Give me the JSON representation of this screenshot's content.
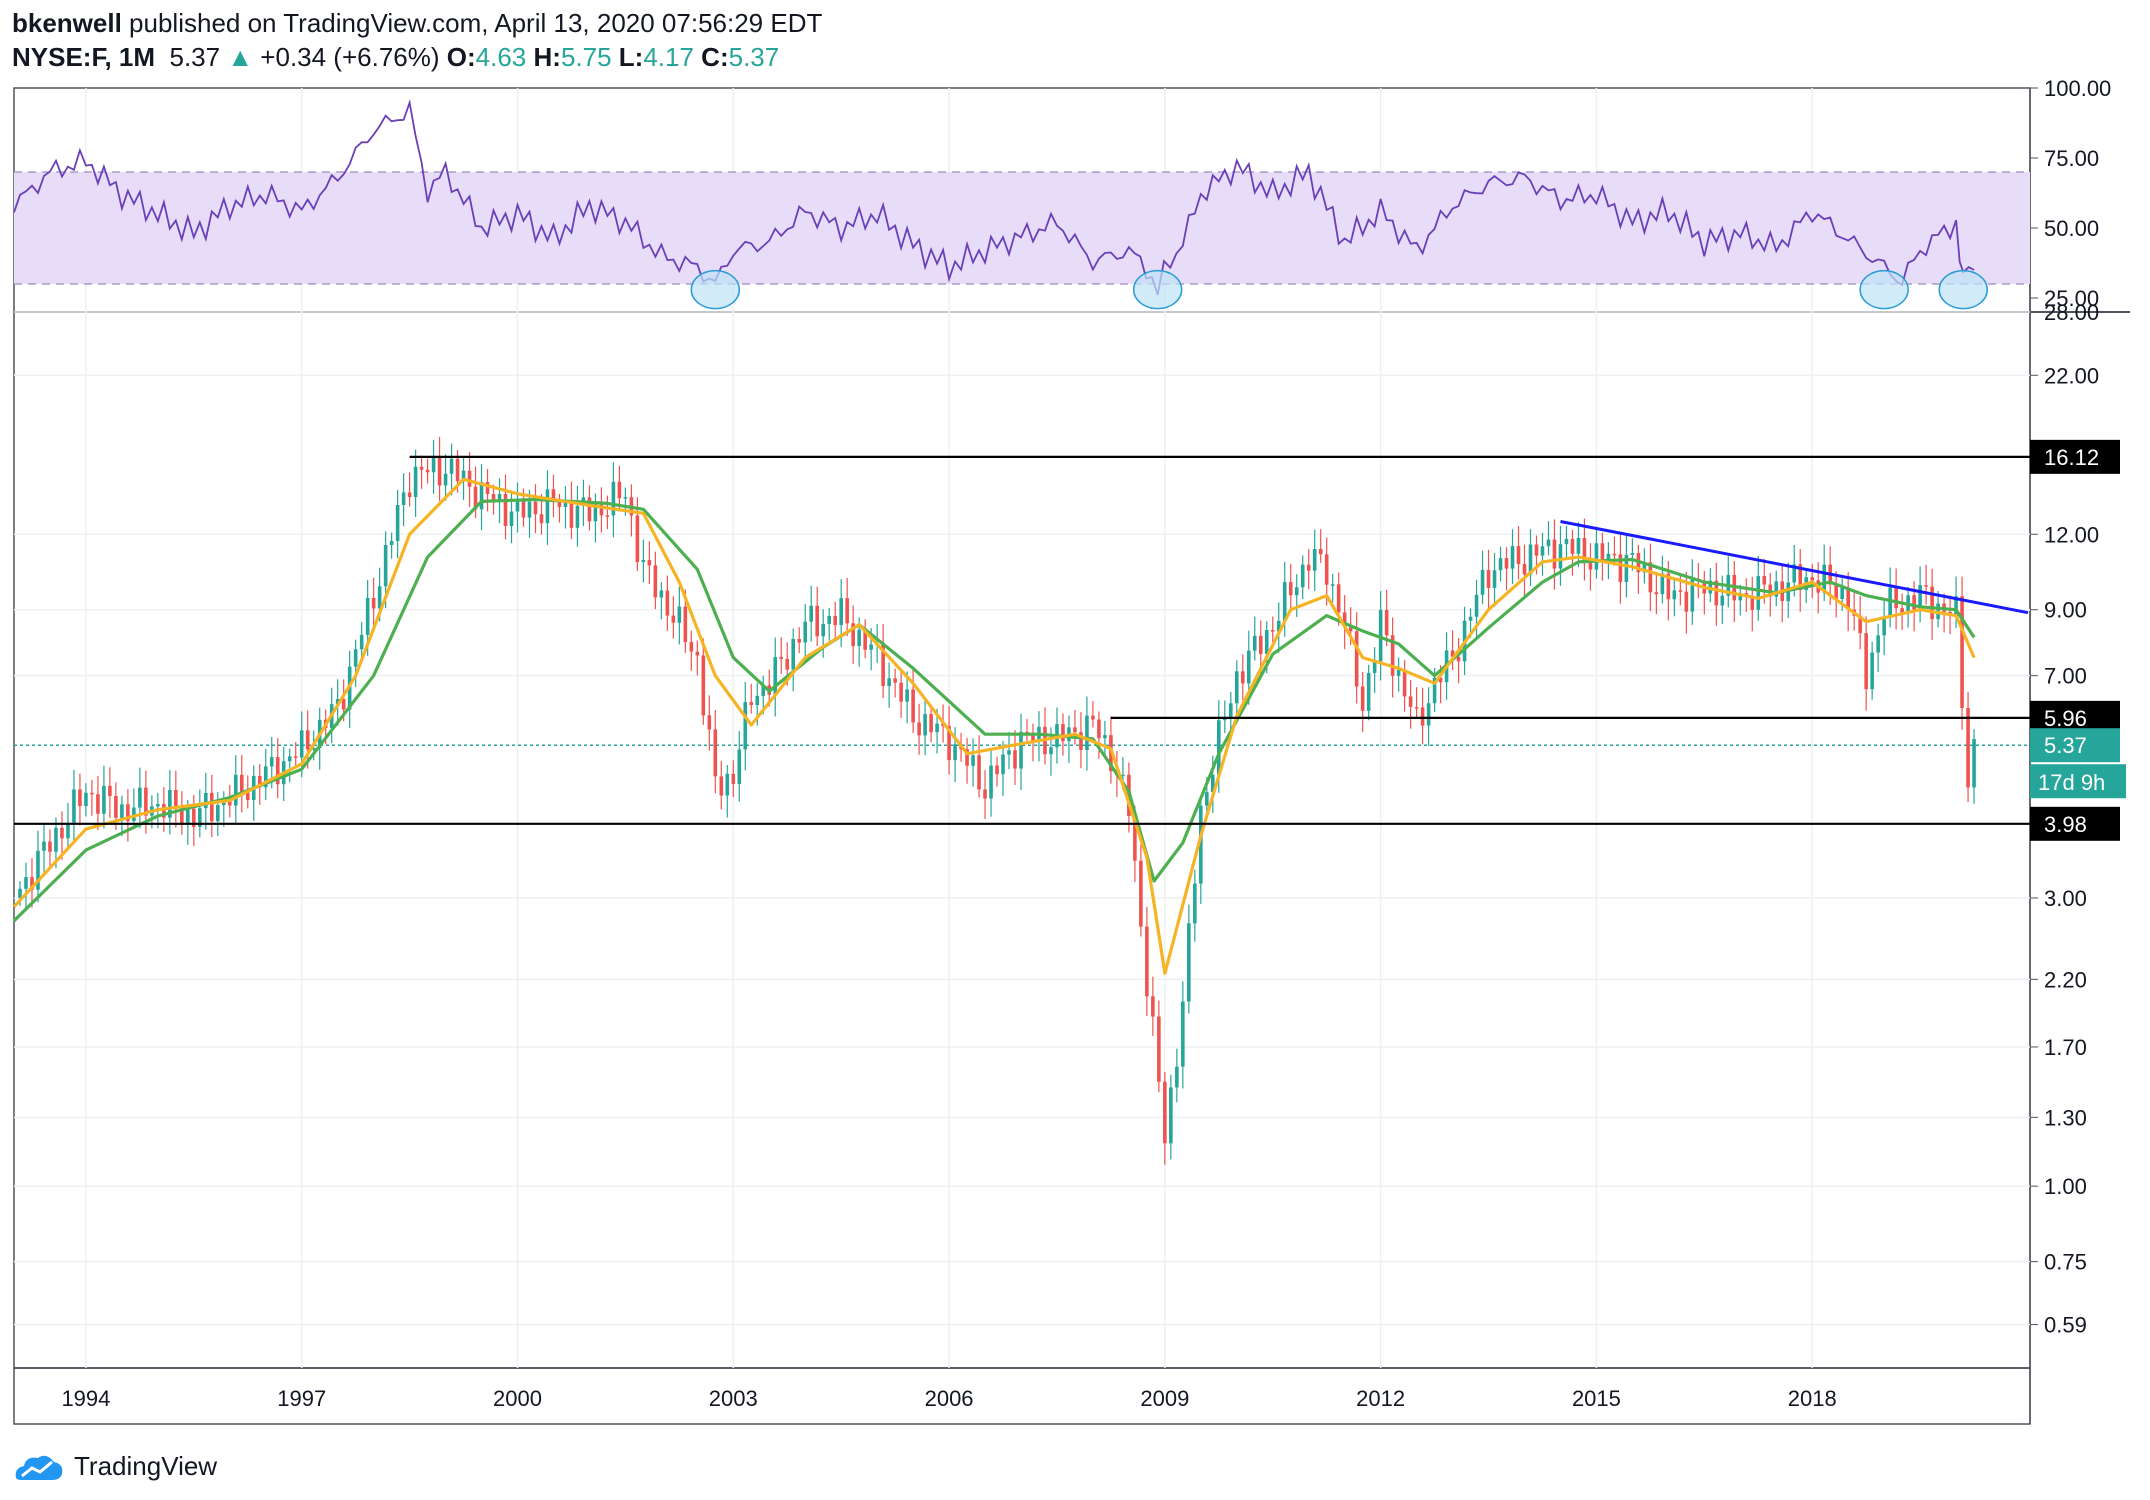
{
  "header": {
    "author": "bkenwell",
    "published": " published on TradingView.com, April 13, 2020 07:56:29 EDT",
    "symbol": "NYSE:F, 1M",
    "last": "5.37",
    "change": "+0.34 (+6.76%)",
    "o_label": "O:",
    "o": "4.63",
    "h_label": "H:",
    "h": "5.75",
    "l_label": "L:",
    "l": "4.17",
    "c_label": "C:",
    "c": "5.37"
  },
  "footer": {
    "brand": "TradingView"
  },
  "chart_data": [
    {
      "type": "line",
      "panel": "RSI",
      "ylim": [
        20,
        100
      ],
      "y_ticks": [
        "100.00",
        "75.00",
        "50.00",
        "25.00"
      ],
      "band": [
        30,
        70
      ],
      "grid": true,
      "band_color": "#e7ddf9",
      "line_color": "#6a3fb8",
      "highlight_circles_x": [
        2002.75,
        2008.9,
        2019.0,
        2020.1
      ],
      "x": [
        1993.0,
        1993.5,
        1994.0,
        1994.5,
        1995.0,
        1995.5,
        1996.0,
        1996.5,
        1997.0,
        1997.5,
        1998.0,
        1998.5,
        1998.75,
        1999.0,
        1999.5,
        2000.0,
        2000.5,
        2001.0,
        2001.5,
        2002.0,
        2002.5,
        2002.75,
        2003.0,
        2003.5,
        2004.0,
        2004.5,
        2005.0,
        2005.5,
        2006.0,
        2006.5,
        2007.0,
        2007.5,
        2008.0,
        2008.5,
        2008.9,
        2009.25,
        2009.5,
        2010.0,
        2010.5,
        2011.0,
        2011.5,
        2012.0,
        2012.5,
        2013.0,
        2013.5,
        2014.0,
        2014.5,
        2015.0,
        2015.5,
        2016.0,
        2016.5,
        2017.0,
        2017.5,
        2018.0,
        2018.5,
        2019.0,
        2019.25,
        2019.5,
        2020.0,
        2020.1,
        2020.25
      ],
      "y": [
        58,
        70,
        74,
        62,
        55,
        48,
        58,
        62,
        56,
        68,
        85,
        92,
        63,
        70,
        50,
        55,
        46,
        58,
        52,
        40,
        36,
        30,
        42,
        45,
        56,
        50,
        55,
        44,
        36,
        42,
        47,
        52,
        38,
        42,
        30,
        45,
        62,
        72,
        62,
        70,
        45,
        56,
        42,
        58,
        66,
        68,
        60,
        62,
        52,
        56,
        45,
        48,
        43,
        56,
        46,
        36,
        31,
        42,
        52,
        33,
        35
      ]
    },
    {
      "type": "candlestick",
      "panel": "Price",
      "series_name": "NYSE:F, 1M",
      "y_scale": "log",
      "ylim": [
        0.5,
        28.0
      ],
      "y_ticks": [
        "28.00",
        "22.00",
        "16.12",
        "12.00",
        "9.00",
        "7.00",
        "5.96",
        "5.37",
        "3.98",
        "3.00",
        "2.20",
        "1.70",
        "1.30",
        "1.00",
        "0.75",
        "0.59"
      ],
      "x_ticks": [
        "1994",
        "1997",
        "2000",
        "2003",
        "2006",
        "2009",
        "2012",
        "2015",
        "2018"
      ],
      "x_range": [
        1993.0,
        2021.0
      ],
      "grid": true,
      "price_path": [
        [
          1993.0,
          3.0
        ],
        [
          1993.5,
          3.7
        ],
        [
          1994.0,
          4.5
        ],
        [
          1994.5,
          4.2
        ],
        [
          1995.0,
          4.3
        ],
        [
          1995.5,
          4.1
        ],
        [
          1996.0,
          4.4
        ],
        [
          1996.5,
          4.8
        ],
        [
          1997.0,
          5.3
        ],
        [
          1997.5,
          6.2
        ],
        [
          1998.0,
          9.5
        ],
        [
          1998.5,
          15.0
        ],
        [
          1999.0,
          15.5
        ],
        [
          1999.5,
          14.0
        ],
        [
          2000.0,
          13.0
        ],
        [
          2000.5,
          13.5
        ],
        [
          2001.0,
          13.0
        ],
        [
          2001.5,
          14.0
        ],
        [
          2001.75,
          10.5
        ],
        [
          2002.0,
          9.5
        ],
        [
          2002.5,
          7.5
        ],
        [
          2002.75,
          4.6
        ],
        [
          2003.0,
          4.8
        ],
        [
          2003.25,
          6.5
        ],
        [
          2003.5,
          6.8
        ],
        [
          2004.0,
          8.5
        ],
        [
          2004.5,
          8.8
        ],
        [
          2005.0,
          7.5
        ],
        [
          2005.5,
          6.0
        ],
        [
          2006.0,
          5.5
        ],
        [
          2006.5,
          4.6
        ],
        [
          2007.0,
          5.5
        ],
        [
          2007.5,
          5.5
        ],
        [
          2008.0,
          5.8
        ],
        [
          2008.25,
          5.2
        ],
        [
          2008.5,
          4.2
        ],
        [
          2008.75,
          2.2
        ],
        [
          2009.0,
          1.2
        ],
        [
          2009.25,
          2.0
        ],
        [
          2009.5,
          4.2
        ],
        [
          2009.75,
          5.5
        ],
        [
          2010.0,
          7.0
        ],
        [
          2010.5,
          8.5
        ],
        [
          2011.0,
          11.0
        ],
        [
          2011.25,
          10.5
        ],
        [
          2011.5,
          8.5
        ],
        [
          2011.75,
          6.3
        ],
        [
          2012.0,
          8.5
        ],
        [
          2012.5,
          5.8
        ],
        [
          2012.75,
          6.8
        ],
        [
          2013.0,
          7.5
        ],
        [
          2013.5,
          10.5
        ],
        [
          2014.0,
          11.0
        ],
        [
          2014.5,
          11.5
        ],
        [
          2015.0,
          11.0
        ],
        [
          2015.5,
          10.8
        ],
        [
          2016.0,
          9.5
        ],
        [
          2016.5,
          9.8
        ],
        [
          2017.0,
          9.5
        ],
        [
          2017.5,
          9.8
        ],
        [
          2018.0,
          10.2
        ],
        [
          2018.5,
          9.5
        ],
        [
          2018.75,
          7.0
        ],
        [
          2019.0,
          9.0
        ],
        [
          2019.5,
          9.5
        ],
        [
          2020.0,
          8.8
        ],
        [
          2020.1,
          6.0
        ],
        [
          2020.17,
          4.7
        ],
        [
          2020.25,
          5.37
        ]
      ],
      "ma_fast": {
        "name": "MA fast",
        "color": "#f6b324",
        "points": [
          [
            1993.0,
            2.9
          ],
          [
            1994.0,
            3.9
          ],
          [
            1995.0,
            4.2
          ],
          [
            1996.0,
            4.35
          ],
          [
            1997.0,
            5.0
          ],
          [
            1997.75,
            7.0
          ],
          [
            1998.5,
            12.0
          ],
          [
            1999.25,
            14.8
          ],
          [
            2000.0,
            14.0
          ],
          [
            2001.0,
            13.4
          ],
          [
            2001.75,
            13.0
          ],
          [
            2002.25,
            10.0
          ],
          [
            2002.75,
            7.0
          ],
          [
            2003.25,
            5.8
          ],
          [
            2004.0,
            7.5
          ],
          [
            2004.75,
            8.5
          ],
          [
            2005.5,
            6.8
          ],
          [
            2006.25,
            5.2
          ],
          [
            2007.0,
            5.4
          ],
          [
            2007.75,
            5.6
          ],
          [
            2008.25,
            5.3
          ],
          [
            2008.75,
            3.5
          ],
          [
            2009.0,
            2.25
          ],
          [
            2009.5,
            3.8
          ],
          [
            2010.0,
            6.0
          ],
          [
            2010.75,
            9.0
          ],
          [
            2011.25,
            9.5
          ],
          [
            2011.75,
            7.5
          ],
          [
            2012.25,
            7.2
          ],
          [
            2012.75,
            6.8
          ],
          [
            2013.5,
            9.0
          ],
          [
            2014.25,
            10.8
          ],
          [
            2014.75,
            11.0
          ],
          [
            2015.5,
            10.6
          ],
          [
            2016.5,
            9.8
          ],
          [
            2017.25,
            9.4
          ],
          [
            2018.0,
            10.0
          ],
          [
            2018.75,
            8.6
          ],
          [
            2019.5,
            9.0
          ],
          [
            2020.0,
            8.8
          ],
          [
            2020.25,
            7.5
          ]
        ]
      },
      "ma_slow": {
        "name": "MA slow",
        "color": "#4caf50",
        "points": [
          [
            1993.0,
            2.75
          ],
          [
            1994.0,
            3.6
          ],
          [
            1995.0,
            4.1
          ],
          [
            1996.0,
            4.4
          ],
          [
            1997.0,
            4.9
          ],
          [
            1998.0,
            7.0
          ],
          [
            1998.75,
            11.0
          ],
          [
            1999.5,
            13.6
          ],
          [
            2000.25,
            13.7
          ],
          [
            2001.25,
            13.5
          ],
          [
            2001.75,
            13.2
          ],
          [
            2002.5,
            10.5
          ],
          [
            2003.0,
            7.5
          ],
          [
            2003.5,
            6.6
          ],
          [
            2004.25,
            7.8
          ],
          [
            2004.75,
            8.5
          ],
          [
            2005.5,
            7.2
          ],
          [
            2006.5,
            5.6
          ],
          [
            2007.25,
            5.6
          ],
          [
            2008.0,
            5.5
          ],
          [
            2008.5,
            4.5
          ],
          [
            2008.85,
            3.2
          ],
          [
            2009.25,
            3.7
          ],
          [
            2009.75,
            5.2
          ],
          [
            2010.5,
            7.6
          ],
          [
            2011.25,
            8.8
          ],
          [
            2011.75,
            8.3
          ],
          [
            2012.25,
            7.9
          ],
          [
            2012.75,
            7.0
          ],
          [
            2013.5,
            8.4
          ],
          [
            2014.25,
            10.0
          ],
          [
            2014.75,
            10.8
          ],
          [
            2015.5,
            10.9
          ],
          [
            2016.5,
            10.0
          ],
          [
            2017.5,
            9.6
          ],
          [
            2018.25,
            10.0
          ],
          [
            2018.75,
            9.5
          ],
          [
            2019.5,
            9.1
          ],
          [
            2020.0,
            9.0
          ],
          [
            2020.25,
            8.1
          ]
        ]
      },
      "horizontal_lines": [
        {
          "label": "16.12",
          "value": 16.12,
          "x_from": 1998.5
        },
        {
          "label": "5.96",
          "value": 5.96,
          "x_from": 2008.25
        },
        {
          "label": "3.98",
          "value": 3.98,
          "x_from": 1993.0
        }
      ],
      "trendline": {
        "color": "#1a1aff",
        "from": [
          2014.5,
          12.6
        ],
        "to": [
          2021.0,
          8.9
        ]
      },
      "last_price": {
        "label": "5.37",
        "value": 5.37,
        "color": "#26a69a"
      },
      "countdown": "17d 9h"
    }
  ]
}
